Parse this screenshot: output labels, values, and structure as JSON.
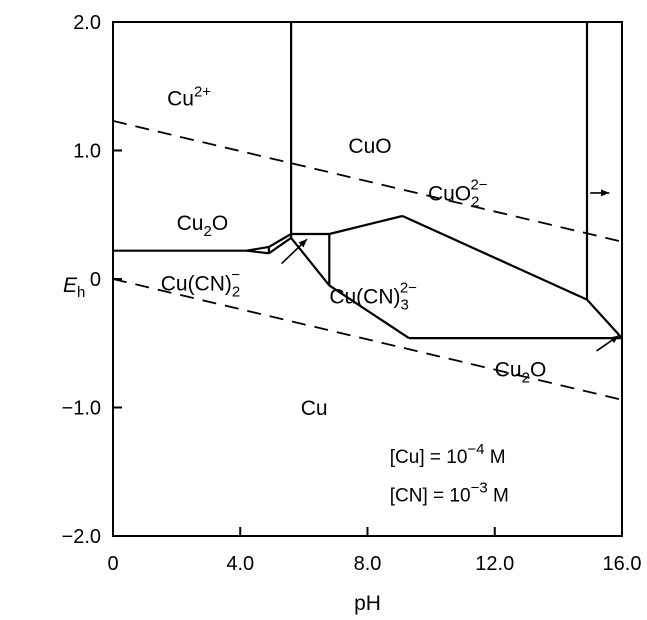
{
  "chart_data": {
    "type": "diagram",
    "xlabel": "pH",
    "ylabel": "E",
    "ylabel_sub": "h",
    "xlim": [
      0,
      16
    ],
    "ylim": [
      -2,
      2
    ],
    "x_ticks": [
      {
        "value": 0,
        "label": "0"
      },
      {
        "value": 4,
        "label": "4.0"
      },
      {
        "value": 8,
        "label": "8.0"
      },
      {
        "value": 12,
        "label": "12.0"
      },
      {
        "value": 16,
        "label": "16.0"
      }
    ],
    "y_ticks": [
      {
        "value": 2,
        "label": "2.0"
      },
      {
        "value": 1,
        "label": "1.0"
      },
      {
        "value": 0,
        "label": "0"
      },
      {
        "value": -1,
        "label": "−1.0"
      },
      {
        "value": -2,
        "label": "−2.0"
      }
    ],
    "boundaries": [
      {
        "points": [
          [
            0,
            0.22
          ],
          [
            4.2,
            0.22
          ]
        ]
      },
      {
        "points": [
          [
            4.2,
            0.22
          ],
          [
            4.9,
            0.25
          ]
        ]
      },
      {
        "points": [
          [
            4.2,
            0.22
          ],
          [
            4.9,
            0.2
          ]
        ]
      },
      {
        "points": [
          [
            4.9,
            0.2
          ],
          [
            4.9,
            0.25
          ]
        ]
      },
      {
        "points": [
          [
            4.9,
            0.25
          ],
          [
            5.6,
            0.35
          ]
        ]
      },
      {
        "points": [
          [
            4.9,
            0.2
          ],
          [
            5.6,
            0.32
          ]
        ]
      },
      {
        "points": [
          [
            5.6,
            0.32
          ],
          [
            5.6,
            2.0
          ]
        ]
      },
      {
        "points": [
          [
            5.6,
            0.35
          ],
          [
            6.8,
            0.35
          ]
        ]
      },
      {
        "points": [
          [
            6.8,
            0.35
          ],
          [
            6.8,
            -0.05
          ]
        ]
      },
      {
        "points": [
          [
            5.6,
            0.32
          ],
          [
            6.8,
            -0.05
          ]
        ]
      },
      {
        "points": [
          [
            6.8,
            0.35
          ],
          [
            9.1,
            0.49
          ]
        ]
      },
      {
        "points": [
          [
            9.1,
            0.49
          ],
          [
            14.9,
            -0.16
          ]
        ]
      },
      {
        "points": [
          [
            14.9,
            -0.16
          ],
          [
            14.9,
            2.0
          ]
        ]
      },
      {
        "points": [
          [
            14.9,
            -0.16
          ],
          [
            16.0,
            -0.46
          ]
        ]
      },
      {
        "points": [
          [
            6.8,
            -0.05
          ],
          [
            9.3,
            -0.46
          ]
        ]
      },
      {
        "points": [
          [
            9.3,
            -0.46
          ],
          [
            16.0,
            -0.46
          ]
        ]
      }
    ],
    "dashed_lines": [
      {
        "points": [
          [
            0,
            1.23
          ],
          [
            16,
            0.29
          ]
        ]
      },
      {
        "points": [
          [
            0,
            0.0
          ],
          [
            16,
            -0.94
          ]
        ]
      }
    ],
    "arrows": [
      {
        "from": [
          5.3,
          0.12
        ],
        "to": [
          6.1,
          0.31
        ]
      },
      {
        "from": [
          15.0,
          0.67
        ],
        "to": [
          15.6,
          0.67
        ]
      },
      {
        "from": [
          15.2,
          -0.56
        ],
        "to": [
          15.9,
          -0.44
        ]
      }
    ],
    "regions": [
      {
        "id": "cu2plus",
        "label": "Cu",
        "sup": "2+",
        "x": 1.7,
        "y": 1.35
      },
      {
        "id": "cuo",
        "label": "CuO",
        "x": 7.4,
        "y": 0.98
      },
      {
        "id": "cuo2",
        "label": "CuO",
        "sub": "2",
        "sup": "2−",
        "x": 9.9,
        "y": 0.61
      },
      {
        "id": "cu2o-top",
        "label": "Cu",
        "sub": "2",
        "tail": "O",
        "x": 2.0,
        "y": 0.38
      },
      {
        "id": "cucn2",
        "label": "Cu(CN)",
        "sub": "2",
        "sup": "−",
        "x": 1.5,
        "y": -0.09
      },
      {
        "id": "cucn3",
        "label": "Cu(CN)",
        "sub": "3",
        "sup": "2−",
        "x": 6.8,
        "y": -0.19
      },
      {
        "id": "cu2o-bottom",
        "label": "Cu",
        "sub": "2",
        "tail": "O",
        "x": 12.0,
        "y": -0.76
      },
      {
        "id": "cu",
        "label": "Cu",
        "x": 5.9,
        "y": -1.06
      }
    ],
    "conditions": [
      {
        "id": "cu-conc",
        "lhs": "[Cu]",
        "rhs": " = 10",
        "sup": "−4",
        "unit": " M",
        "x": 8.7,
        "y": -1.43
      },
      {
        "id": "cn-conc",
        "lhs": "[CN]",
        "rhs": " = 10",
        "sup": "−3",
        "unit": " M",
        "x": 8.7,
        "y": -1.73
      }
    ]
  }
}
